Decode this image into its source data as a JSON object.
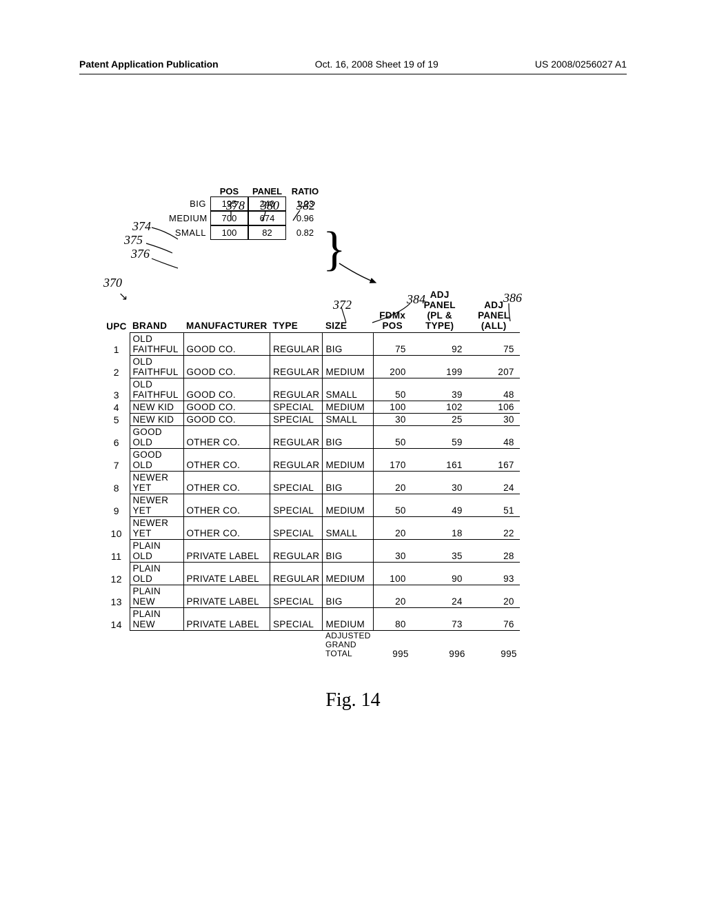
{
  "header": {
    "left": "Patent Application Publication",
    "mid": "Oct. 16, 2008  Sheet 19 of 19",
    "right": "US 2008/0256027 A1"
  },
  "callouts": {
    "c370": "370",
    "c372": "372",
    "c374": "374",
    "c375": "375",
    "c376": "376",
    "c378": "378",
    "c380": "380",
    "c382": "382",
    "c384": "384",
    "c386": "386"
  },
  "ratio_table": {
    "headers": {
      "pos": "POS",
      "panel": "PANEL",
      "ratio": "RATIO"
    },
    "rows": [
      {
        "size": "BIG",
        "pos": "195",
        "panel": "240",
        "ratio": "1.23"
      },
      {
        "size": "MEDIUM",
        "pos": "700",
        "panel": "674",
        "ratio": "0.96"
      },
      {
        "size": "SMALL",
        "pos": "100",
        "panel": "82",
        "ratio": "0.82"
      }
    ]
  },
  "main_table": {
    "headers": {
      "upc": "UPC",
      "brand": "BRAND",
      "mfr": "MANUFACTURER",
      "type": "TYPE",
      "size": "SIZE",
      "fdmx": "FDMx\nPOS",
      "adj1": "ADJ PANEL\n(PL & TYPE)",
      "adj2": "ADJ PANEL\n(ALL)"
    },
    "rows": [
      {
        "upc": "1",
        "brand": "OLD\nFAITHFUL",
        "mfr": "GOOD CO.",
        "type": "REGULAR",
        "size": "BIG",
        "fdmx": "75",
        "adj1": "92",
        "adj2": "75"
      },
      {
        "upc": "2",
        "brand": "OLD\nFAITHFUL",
        "mfr": "GOOD CO.",
        "type": "REGULAR",
        "size": "MEDIUM",
        "fdmx": "200",
        "adj1": "199",
        "adj2": "207"
      },
      {
        "upc": "3",
        "brand": "OLD\nFAITHFUL",
        "mfr": "GOOD CO.",
        "type": "REGULAR",
        "size": "SMALL",
        "fdmx": "50",
        "adj1": "39",
        "adj2": "48"
      },
      {
        "upc": "4",
        "brand": "NEW KID",
        "mfr": "GOOD CO.",
        "type": "SPECIAL",
        "size": "MEDIUM",
        "fdmx": "100",
        "adj1": "102",
        "adj2": "106"
      },
      {
        "upc": "5",
        "brand": "NEW KID",
        "mfr": "GOOD CO.",
        "type": "SPECIAL",
        "size": "SMALL",
        "fdmx": "30",
        "adj1": "25",
        "adj2": "30"
      },
      {
        "upc": "6",
        "brand": "GOOD OLD",
        "mfr": "OTHER CO.",
        "type": "REGULAR",
        "size": "BIG",
        "fdmx": "50",
        "adj1": "59",
        "adj2": "48"
      },
      {
        "upc": "7",
        "brand": "GOOD OLD",
        "mfr": "OTHER CO.",
        "type": "REGULAR",
        "size": "MEDIUM",
        "fdmx": "170",
        "adj1": "161",
        "adj2": "167"
      },
      {
        "upc": "8",
        "brand": "NEWER\nYET",
        "mfr": "OTHER CO.",
        "type": "SPECIAL",
        "size": "BIG",
        "fdmx": "20",
        "adj1": "30",
        "adj2": "24"
      },
      {
        "upc": "9",
        "brand": "NEWER\nYET",
        "mfr": "OTHER CO.",
        "type": "SPECIAL",
        "size": "MEDIUM",
        "fdmx": "50",
        "adj1": "49",
        "adj2": "51"
      },
      {
        "upc": "10",
        "brand": "NEWER\nYET",
        "mfr": "OTHER CO.",
        "type": "SPECIAL",
        "size": "SMALL",
        "fdmx": "20",
        "adj1": "18",
        "adj2": "22"
      },
      {
        "upc": "11",
        "brand": "PLAIN OLD",
        "mfr": "PRIVATE LABEL",
        "type": "REGULAR",
        "size": "BIG",
        "fdmx": "30",
        "adj1": "35",
        "adj2": "28"
      },
      {
        "upc": "12",
        "brand": "PLAIN OLD",
        "mfr": "PRIVATE LABEL",
        "type": "REGULAR",
        "size": "MEDIUM",
        "fdmx": "100",
        "adj1": "90",
        "adj2": "93"
      },
      {
        "upc": "13",
        "brand": "PLAIN\nNEW",
        "mfr": "PRIVATE LABEL",
        "type": "SPECIAL",
        "size": "BIG",
        "fdmx": "20",
        "adj1": "24",
        "adj2": "20"
      },
      {
        "upc": "14",
        "brand": "PLAIN\nNEW",
        "mfr": "PRIVATE LABEL",
        "type": "SPECIAL",
        "size": "MEDIUM",
        "fdmx": "80",
        "adj1": "73",
        "adj2": "76"
      }
    ],
    "grand": {
      "label": "ADJUSTED\nGRAND\nTOTAL",
      "fdmx": "995",
      "adj1": "996",
      "adj2": "995"
    }
  },
  "figure_caption": "Fig.  14"
}
